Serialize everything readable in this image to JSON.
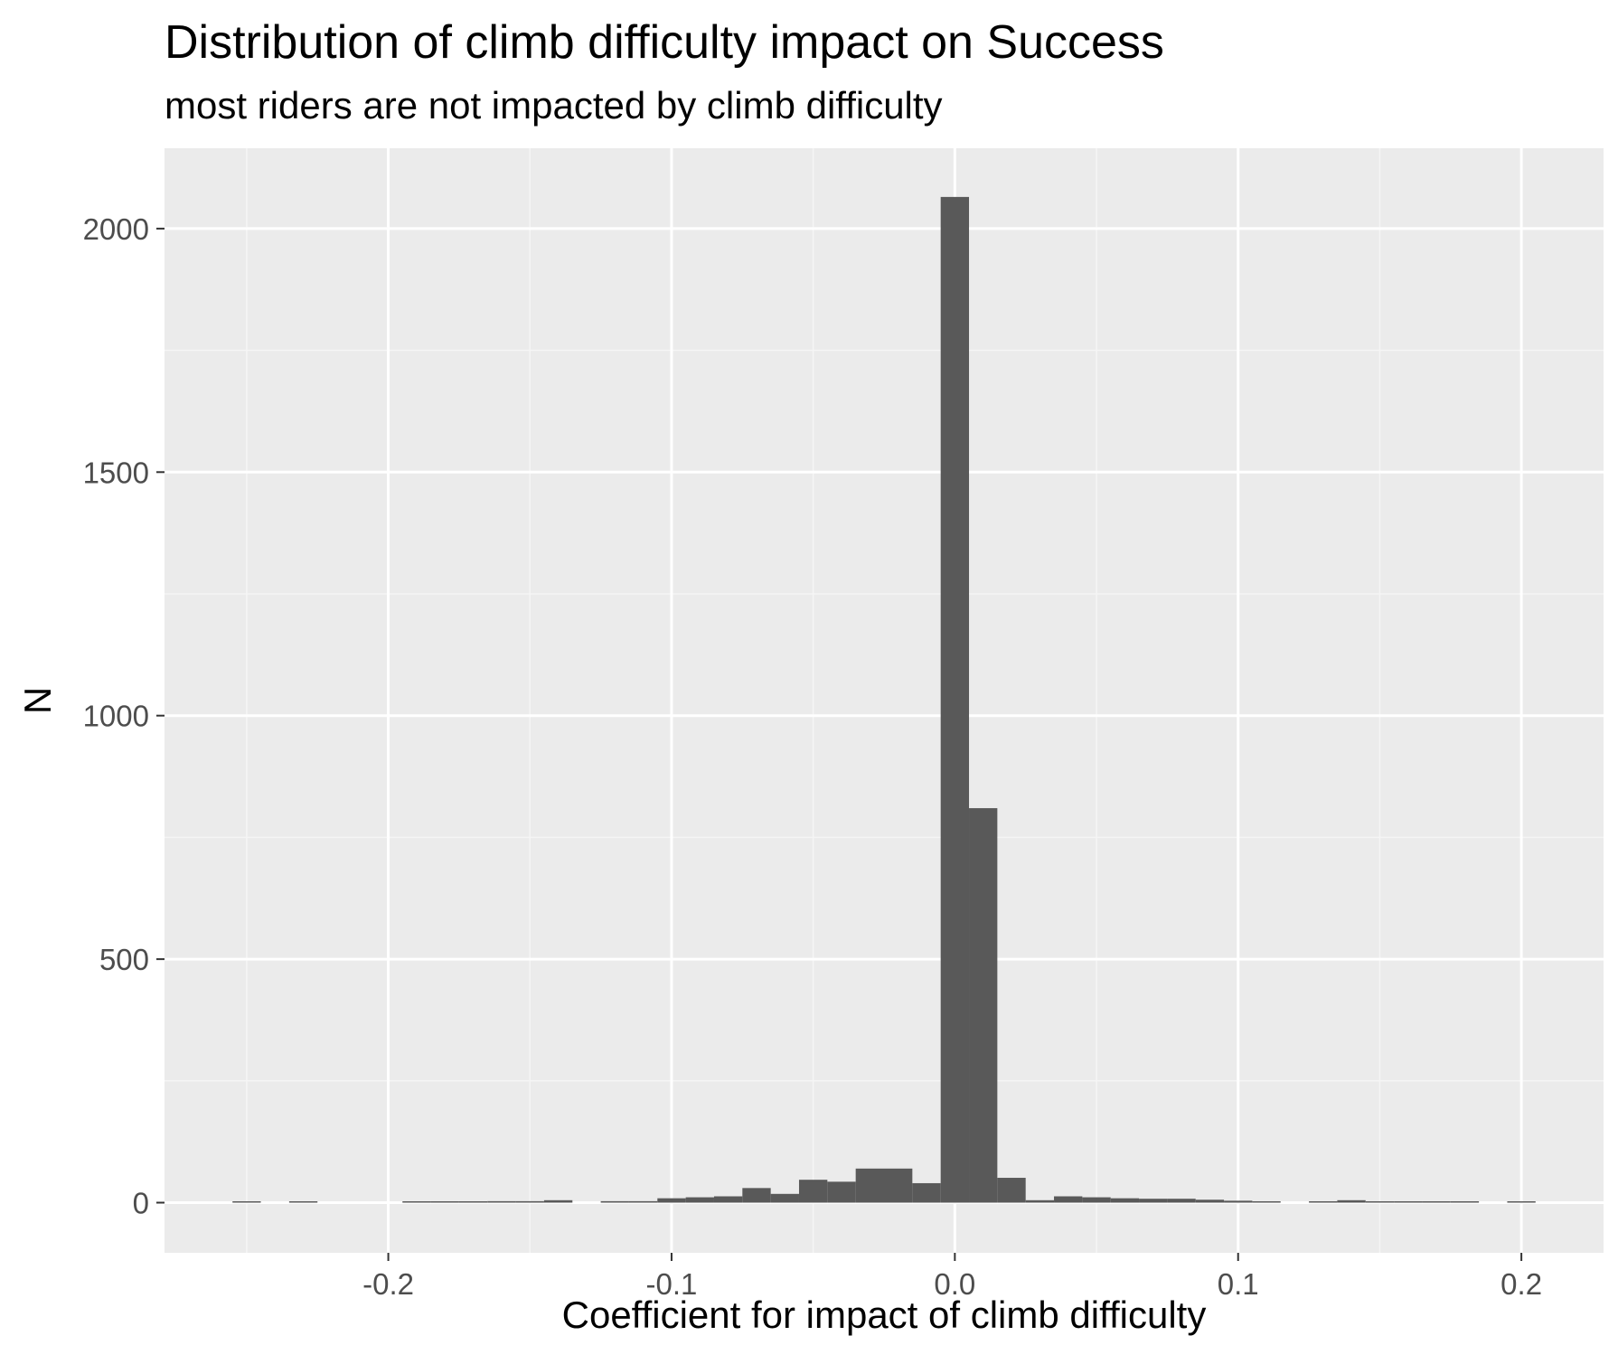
{
  "chart_data": {
    "type": "bar",
    "title": "Distribution of climb difficulty impact on Success",
    "subtitle": "most riders are not impacted by climb difficulty",
    "xlabel": "Coefficient for impact of climb difficulty",
    "ylabel": "N",
    "xlim": [
      -0.279,
      0.229
    ],
    "ylim": [
      -103,
      2165
    ],
    "x_ticks": [
      -0.2,
      -0.1,
      0.0,
      0.1,
      0.2
    ],
    "x_tick_labels": [
      "-0.2",
      "-0.1",
      "0.0",
      "0.1",
      "0.2"
    ],
    "y_ticks": [
      0,
      500,
      1000,
      1500,
      2000
    ],
    "y_tick_labels": [
      "0",
      "500",
      "1000",
      "1500",
      "2000"
    ],
    "bin_width": 0.01,
    "bins": [
      {
        "x": -0.25,
        "count": 1
      },
      {
        "x": -0.23,
        "count": 1
      },
      {
        "x": -0.19,
        "count": 1
      },
      {
        "x": -0.18,
        "count": 1
      },
      {
        "x": -0.17,
        "count": 1
      },
      {
        "x": -0.16,
        "count": 3
      },
      {
        "x": -0.15,
        "count": 3
      },
      {
        "x": -0.14,
        "count": 5
      },
      {
        "x": -0.12,
        "count": 3
      },
      {
        "x": -0.11,
        "count": 3
      },
      {
        "x": -0.1,
        "count": 9
      },
      {
        "x": -0.09,
        "count": 11
      },
      {
        "x": -0.08,
        "count": 13
      },
      {
        "x": -0.07,
        "count": 30
      },
      {
        "x": -0.06,
        "count": 18
      },
      {
        "x": -0.05,
        "count": 47
      },
      {
        "x": -0.04,
        "count": 43
      },
      {
        "x": -0.03,
        "count": 70
      },
      {
        "x": -0.02,
        "count": 70
      },
      {
        "x": -0.01,
        "count": 40
      },
      {
        "x": 0.0,
        "count": 2065
      },
      {
        "x": 0.01,
        "count": 810
      },
      {
        "x": 0.02,
        "count": 51
      },
      {
        "x": 0.03,
        "count": 5
      },
      {
        "x": 0.04,
        "count": 13
      },
      {
        "x": 0.05,
        "count": 11
      },
      {
        "x": 0.06,
        "count": 9
      },
      {
        "x": 0.07,
        "count": 8
      },
      {
        "x": 0.08,
        "count": 8
      },
      {
        "x": 0.09,
        "count": 6
      },
      {
        "x": 0.1,
        "count": 4
      },
      {
        "x": 0.11,
        "count": 2
      },
      {
        "x": 0.13,
        "count": 2
      },
      {
        "x": 0.14,
        "count": 5
      },
      {
        "x": 0.15,
        "count": 1
      },
      {
        "x": 0.16,
        "count": 1
      },
      {
        "x": 0.17,
        "count": 1
      },
      {
        "x": 0.18,
        "count": 1
      },
      {
        "x": 0.2,
        "count": 1
      }
    ],
    "grid": true,
    "colors": {
      "panel_background": "#ebebeb",
      "grid_major": "#ffffff",
      "grid_minor": "#f5f5f5",
      "bar_fill": "#595959",
      "tick_text": "#4d4d4d",
      "tick_mark": "#333333"
    }
  }
}
